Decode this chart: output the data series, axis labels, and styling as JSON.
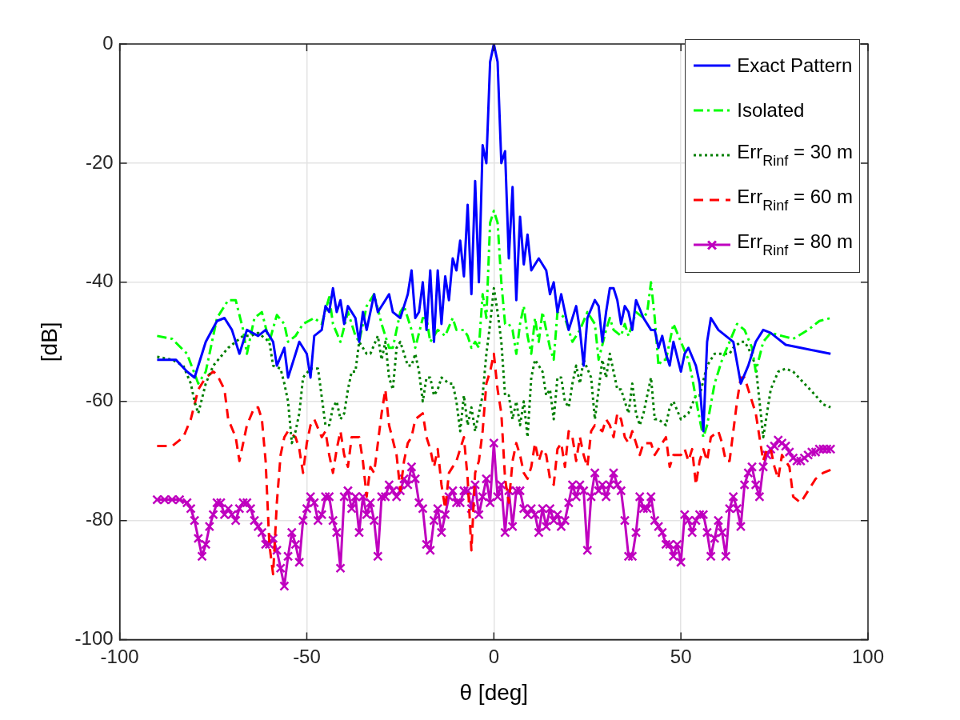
{
  "chart_data": {
    "type": "line",
    "xlabel": "θ [deg]",
    "ylabel": "[dB]",
    "xlim": [
      -100,
      100
    ],
    "xticks": [
      -100,
      -50,
      0,
      50,
      100
    ],
    "ylim": [
      -100,
      0
    ],
    "yticks": [
      -100,
      -80,
      -60,
      -40,
      -20,
      0
    ],
    "grid": true,
    "legend": "top right",
    "series": [
      {
        "name": "Exact Pattern",
        "color": "#0000ff",
        "line_style": "solid",
        "marker": "none",
        "x": [
          -90,
          -85,
          -82,
          -80,
          -77,
          -74,
          -72,
          -70,
          -68,
          -66,
          -63,
          -61,
          -59,
          -58,
          -56,
          -55,
          -53,
          -52,
          -50,
          -49,
          -48,
          -46,
          -45,
          -44,
          -43,
          -42,
          -41,
          -40,
          -39,
          -37,
          -36,
          -35,
          -34,
          -32,
          -31,
          -29,
          -28,
          -27,
          -25,
          -24,
          -23,
          -22,
          -21,
          -20,
          -19,
          -18,
          -17,
          -16,
          -15,
          -14,
          -13,
          -12,
          -11,
          -10,
          -9,
          -8,
          -7,
          -6,
          -5,
          -4,
          -3,
          -2,
          -1,
          0,
          1,
          2,
          3,
          4,
          5,
          6,
          7,
          8,
          9,
          10,
          12,
          14,
          15,
          16,
          17,
          18,
          20,
          22,
          23,
          24,
          25,
          27,
          28,
          29,
          30,
          31,
          32,
          33,
          34,
          35,
          36,
          37,
          38,
          40,
          42,
          43,
          44,
          45,
          46,
          47,
          48,
          50,
          51,
          52,
          54,
          55,
          56,
          57,
          58,
          60,
          62,
          64,
          66,
          68,
          70,
          72,
          74,
          76,
          78,
          82,
          86,
          90
        ],
        "values": [
          -53,
          -53,
          -55,
          -56,
          -50,
          -46.5,
          -46,
          -48,
          -52,
          -48,
          -49,
          -48,
          -50,
          -54,
          -51,
          -56,
          -52,
          -50,
          -52,
          -56,
          -49,
          -48,
          -44,
          -45,
          -41,
          -45,
          -43,
          -47,
          -44,
          -46,
          -50,
          -45,
          -48,
          -42,
          -45,
          -43,
          -42,
          -45,
          -46,
          -44,
          -42,
          -38,
          -46,
          -45,
          -40,
          -48,
          -38,
          -50,
          -38,
          -47,
          -39,
          -43,
          -36,
          -38,
          -33,
          -39,
          -27,
          -42,
          -23,
          -40,
          -17,
          -20,
          -3,
          0,
          -3,
          -20,
          -18,
          -36,
          -24,
          -43,
          -29,
          -37,
          -32,
          -38,
          -36,
          -38,
          -42,
          -40,
          -45,
          -42,
          -48,
          -44,
          -48,
          -54,
          -46,
          -43,
          -44,
          -50,
          -45,
          -41,
          -41,
          -43,
          -47,
          -44,
          -45,
          -48,
          -43,
          -46,
          -48,
          -48,
          -51,
          -49,
          -52,
          -54,
          -50,
          -55,
          -52,
          -51,
          -54,
          -57,
          -65,
          -50,
          -46,
          -48,
          -49,
          -50,
          -57,
          -54,
          -50,
          -48,
          -48.5,
          -49.5,
          -50.5,
          -51,
          -51.5,
          -52
        ]
      },
      {
        "name": "Isolated",
        "color": "#00ff00",
        "line_style": "dashdot",
        "marker": "none",
        "x": [
          -90,
          -86,
          -82,
          -79,
          -77,
          -74,
          -71,
          -69,
          -67,
          -66,
          -64,
          -62,
          -60,
          -58,
          -56,
          -55,
          -53,
          -51,
          -48,
          -46,
          -44,
          -43,
          -41,
          -39,
          -37,
          -36,
          -34,
          -32,
          -30,
          -28,
          -27,
          -25,
          -24,
          -22,
          -21,
          -19,
          -18,
          -17,
          -15,
          -13,
          -11,
          -10,
          -8,
          -7,
          -6,
          -5,
          -4,
          -3,
          -2,
          -1,
          0,
          1,
          2,
          3,
          4,
          5,
          6,
          7,
          8,
          9,
          10,
          11,
          12,
          13,
          14,
          15,
          16,
          17,
          19,
          21,
          23,
          25,
          27,
          28,
          30,
          31,
          32,
          34,
          35,
          36,
          38,
          40,
          41,
          42,
          43,
          44,
          45,
          46,
          48,
          50,
          52,
          53,
          55,
          56,
          57,
          59,
          61,
          63,
          65,
          67,
          69,
          70,
          72,
          74,
          77,
          80,
          84,
          87,
          90
        ],
        "values": [
          -49,
          -49.5,
          -52,
          -57,
          -55,
          -46,
          -43,
          -43,
          -48,
          -52,
          -46,
          -45,
          -50,
          -45.5,
          -47,
          -50,
          -49,
          -47,
          -46,
          -47,
          -42.5,
          -47,
          -50,
          -45,
          -49,
          -50,
          -44,
          -42,
          -47,
          -51,
          -51,
          -45,
          -44,
          -48,
          -51,
          -46,
          -46,
          -50,
          -48,
          -49,
          -46,
          -48,
          -48,
          -49,
          -51,
          -50,
          -51,
          -42,
          -46,
          -30,
          -28,
          -30,
          -40,
          -47,
          -47,
          -48,
          -52,
          -47,
          -44,
          -49,
          -52,
          -46,
          -50,
          -45,
          -48,
          -51,
          -53,
          -45,
          -46,
          -50,
          -48,
          -45,
          -47,
          -53,
          -48,
          -46,
          -48,
          -49,
          -47,
          -49,
          -45,
          -46,
          -45,
          -40,
          -46,
          -54,
          -53,
          -53,
          -47,
          -50,
          -53,
          -56,
          -63,
          -66,
          -64,
          -57,
          -53,
          -50,
          -47,
          -48,
          -51,
          -55,
          -50,
          -48.5,
          -49,
          -49.5,
          -48,
          -46.5,
          -46
        ]
      },
      {
        "name": "Err$_{R}$$_{inf}$ = 30 m",
        "color": "#007f00",
        "line_style": "dotted",
        "marker": "none",
        "x": [
          -90,
          -86,
          -83,
          -81,
          -80,
          -79,
          -77,
          -75,
          -73,
          -71,
          -69,
          -67,
          -65,
          -63,
          -62,
          -60,
          -59,
          -57,
          -56,
          -55,
          -54,
          -53,
          -52,
          -51,
          -49,
          -47,
          -45,
          -44,
          -43,
          -42,
          -41,
          -40,
          -39,
          -38,
          -37,
          -36,
          -34,
          -33,
          -31,
          -30,
          -29,
          -28,
          -27,
          -26,
          -25,
          -24,
          -23,
          -22,
          -21,
          -20,
          -19,
          -18,
          -17,
          -16,
          -15,
          -14,
          -12,
          -11,
          -10,
          -9,
          -8,
          -7,
          -6,
          -5,
          -4,
          -3,
          -2,
          -1,
          0,
          1,
          2,
          3,
          4,
          5,
          6,
          7,
          8,
          9,
          10,
          11,
          13,
          14,
          15,
          16,
          17,
          18,
          19,
          20,
          21,
          22,
          23,
          24,
          26,
          27,
          28,
          29,
          30,
          31,
          33,
          34,
          35,
          36,
          37,
          38,
          39,
          40,
          42,
          43,
          44,
          46,
          47,
          48,
          50,
          52,
          54,
          55,
          57,
          59,
          61,
          63,
          64,
          66,
          67,
          68,
          70,
          71,
          72,
          73,
          74,
          76,
          78,
          80,
          83,
          86,
          88,
          90
        ],
        "values": [
          -52.5,
          -53,
          -54,
          -57,
          -60,
          -62,
          -57,
          -54,
          -52.5,
          -51,
          -50,
          -49,
          -49,
          -48.5,
          -49,
          -50,
          -54,
          -54.5,
          -57,
          -60,
          -67,
          -65,
          -62,
          -56,
          -54.5,
          -54.5,
          -64,
          -64,
          -61,
          -60,
          -63,
          -62,
          -58,
          -55,
          -55,
          -50,
          -52,
          -52,
          -49,
          -53,
          -50,
          -56,
          -58,
          -51,
          -50,
          -52,
          -54,
          -54,
          -52,
          -55,
          -60,
          -56,
          -56,
          -59,
          -58,
          -56,
          -57,
          -57,
          -60,
          -65,
          -59,
          -64,
          -61,
          -65,
          -62,
          -59,
          -52,
          -47,
          -41,
          -45,
          -50,
          -59,
          -59,
          -63,
          -60,
          -64,
          -60,
          -66,
          -56,
          -53,
          -55,
          -59,
          -58,
          -63,
          -56,
          -56,
          -60,
          -61,
          -57,
          -54,
          -57,
          -53,
          -56,
          -63,
          -58,
          -53,
          -56,
          -52,
          -58,
          -58,
          -60,
          -62,
          -57,
          -62,
          -64,
          -62,
          -56,
          -63,
          -63,
          -64,
          -61,
          -60,
          -63,
          -62,
          -59,
          -59,
          -54,
          -52,
          -52,
          -52,
          -51,
          -50,
          -50,
          -51,
          -54,
          -60,
          -66,
          -62,
          -58,
          -55,
          -54.5,
          -55,
          -57,
          -59,
          -60.5,
          -61
        ]
      },
      {
        "name": "Err$_{R}$$_{inf}$ = 60 m",
        "color": "#ff0000",
        "line_style": "dashed",
        "marker": "none",
        "x": [
          -90,
          -86,
          -83,
          -81,
          -79,
          -77,
          -75,
          -74,
          -72,
          -71,
          -69,
          -68,
          -66,
          -64,
          -63,
          -62,
          -61,
          -60,
          -59,
          -58,
          -57,
          -56,
          -55,
          -53,
          -52,
          -51,
          -50,
          -49,
          -48,
          -46,
          -45,
          -44,
          -43,
          -42,
          -41,
          -40,
          -39,
          -38,
          -36,
          -35,
          -34,
          -33,
          -32,
          -31,
          -30,
          -29,
          -28,
          -26,
          -25,
          -24,
          -23,
          -22,
          -21,
          -19,
          -18,
          -17,
          -16,
          -15,
          -14,
          -13,
          -12,
          -11,
          -10,
          -9,
          -8,
          -7,
          -6,
          -5,
          -4,
          -3,
          -2,
          -1,
          0,
          1,
          2,
          3,
          4,
          5,
          6,
          7,
          8,
          9,
          10,
          11,
          12,
          13,
          14,
          15,
          16,
          17,
          18,
          19,
          20,
          21,
          22,
          23,
          24,
          25,
          26,
          27,
          29,
          30,
          31,
          32,
          33,
          34,
          35,
          36,
          37,
          38,
          39,
          40,
          42,
          43,
          45,
          46,
          47,
          48,
          50,
          51,
          52,
          53,
          54,
          55,
          56,
          57,
          58,
          60,
          61,
          62,
          63,
          64,
          65,
          66,
          67,
          68,
          70,
          71,
          72,
          73,
          74,
          75,
          76,
          77,
          79,
          80,
          82,
          84,
          86,
          88,
          90
        ],
        "values": [
          -67.5,
          -67.5,
          -66,
          -63,
          -58,
          -56,
          -55,
          -55.5,
          -58,
          -63,
          -66,
          -70,
          -64,
          -61,
          -61,
          -63,
          -70,
          -84,
          -89,
          -77,
          -69,
          -66,
          -65,
          -66,
          -68,
          -72,
          -67,
          -64,
          -63,
          -66,
          -65,
          -69,
          -72,
          -68,
          -65,
          -69,
          -71,
          -66,
          -66,
          -70,
          -76,
          -71,
          -72,
          -67,
          -62,
          -58,
          -64,
          -69,
          -75,
          -70,
          -67,
          -66,
          -63,
          -62,
          -66,
          -68,
          -71,
          -68,
          -74,
          -78,
          -72,
          -71,
          -70,
          -68,
          -66,
          -73,
          -85,
          -72,
          -70,
          -65,
          -57,
          -55,
          -52,
          -58,
          -62,
          -73,
          -77,
          -70,
          -67,
          -69,
          -72,
          -73,
          -71,
          -67,
          -70,
          -68,
          -69,
          -73,
          -74,
          -68,
          -67,
          -71,
          -65,
          -66,
          -70,
          -66,
          -69,
          -71,
          -65,
          -64,
          -65,
          -63,
          -64,
          -66,
          -62,
          -63,
          -66,
          -67,
          -65,
          -67,
          -69,
          -67,
          -67,
          -69,
          -67,
          -66,
          -71,
          -69,
          -69,
          -68,
          -70,
          -68,
          -74,
          -70,
          -68,
          -70,
          -66,
          -65,
          -67,
          -70,
          -70,
          -65,
          -60,
          -56,
          -56,
          -58,
          -62,
          -66,
          -70,
          -68,
          -68,
          -71,
          -73,
          -69,
          -71,
          -76,
          -77,
          -75,
          -73,
          -72,
          -71.5
        ]
      },
      {
        "name": "Err$_{R}$$_{inf}$ = 80 m",
        "color": "#bf00bf",
        "line_style": "solid",
        "marker": "cross",
        "x": [
          -90,
          -88,
          -86,
          -84,
          -82,
          -81,
          -80,
          -79,
          -78,
          -77,
          -76,
          -75,
          -74,
          -73,
          -72,
          -71,
          -70,
          -69,
          -68,
          -67,
          -66,
          -65,
          -64,
          -63,
          -62,
          -61,
          -60,
          -59,
          -58,
          -57,
          -56,
          -55,
          -54,
          -53,
          -52,
          -51,
          -50,
          -49,
          -48,
          -47,
          -46,
          -45,
          -44,
          -43,
          -42,
          -41,
          -40,
          -39,
          -38,
          -37,
          -36,
          -35,
          -34,
          -33,
          -32,
          -31,
          -30,
          -29,
          -28,
          -27,
          -26,
          -25,
          -24,
          -23,
          -22,
          -21,
          -20,
          -19,
          -18,
          -17,
          -16,
          -15,
          -14,
          -13,
          -12,
          -11,
          -10,
          -9,
          -8,
          -7,
          -6,
          -5,
          -4,
          -3,
          -2,
          -1,
          0,
          1,
          2,
          3,
          4,
          5,
          6,
          7,
          8,
          9,
          10,
          11,
          12,
          13,
          14,
          15,
          16,
          17,
          18,
          19,
          20,
          21,
          22,
          23,
          24,
          25,
          26,
          27,
          28,
          29,
          30,
          31,
          32,
          33,
          34,
          35,
          36,
          37,
          38,
          39,
          40,
          41,
          42,
          43,
          44,
          45,
          46,
          47,
          48,
          49,
          50,
          51,
          52,
          53,
          54,
          55,
          56,
          57,
          58,
          59,
          60,
          61,
          62,
          63,
          64,
          65,
          66,
          67,
          68,
          69,
          70,
          71,
          72,
          73,
          74,
          75,
          76,
          77,
          78,
          79,
          80,
          81,
          82,
          83,
          84,
          85,
          86,
          87,
          88,
          89,
          90
        ],
        "values": [
          -76.5,
          -76.5,
          -76.5,
          -76.5,
          -77,
          -78,
          -80,
          -83,
          -86,
          -84,
          -81,
          -79,
          -77,
          -77,
          -79,
          -78,
          -79,
          -80,
          -78,
          -77,
          -77,
          -78,
          -80,
          -81,
          -82,
          -84,
          -84,
          -83,
          -85,
          -88,
          -91,
          -86,
          -82,
          -84,
          -87,
          -80,
          -78,
          -76,
          -77,
          -80,
          -79,
          -76,
          -76,
          -80,
          -82,
          -88,
          -76,
          -75,
          -78,
          -76,
          -82,
          -76,
          -79,
          -77,
          -80,
          -86,
          -76,
          -76,
          -74,
          -75,
          -76,
          -75,
          -73,
          -74,
          -71,
          -73,
          -77,
          -78,
          -84,
          -85,
          -80,
          -78,
          -82,
          -79,
          -76,
          -75,
          -77,
          -77,
          -75,
          -75,
          -78,
          -74,
          -79,
          -76,
          -73,
          -77,
          -67,
          -76,
          -74,
          -82,
          -75,
          -81,
          -75,
          -75,
          -78,
          -79,
          -78,
          -79,
          -82,
          -78,
          -81,
          -78,
          -80,
          -79,
          -81,
          -80,
          -77,
          -74,
          -76,
          -74,
          -75,
          -85,
          -76,
          -72,
          -75,
          -74,
          -76,
          -74,
          -72,
          -74,
          -75,
          -80,
          -86,
          -86,
          -82,
          -76,
          -78,
          -78,
          -76,
          -80,
          -81,
          -82,
          -84,
          -84,
          -86,
          -84,
          -87,
          -79,
          -80,
          -82,
          -80,
          -79,
          -79,
          -82,
          -86,
          -83,
          -80,
          -82,
          -86,
          -78,
          -76,
          -78,
          -81,
          -74,
          -72,
          -71,
          -74,
          -76,
          -71,
          -69,
          -68,
          -67.5,
          -66.5,
          -67,
          -67.5,
          -68.5,
          -69.5,
          -70,
          -70,
          -69.5,
          -69,
          -68.5,
          -68.5,
          -68,
          -68,
          -68,
          -68
        ]
      }
    ]
  }
}
